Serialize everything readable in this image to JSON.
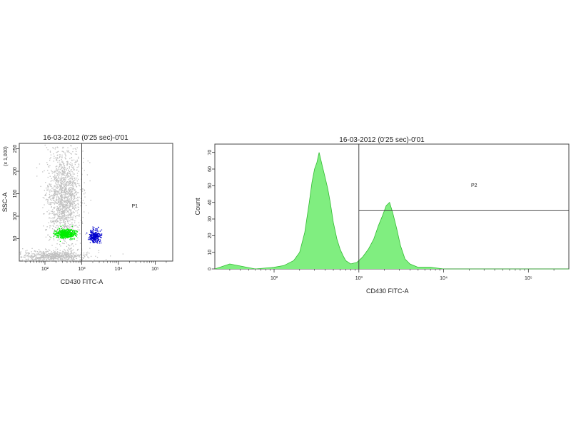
{
  "chart_data": [
    {
      "type": "scatter",
      "title": "16-03-2012 (0'25 sec)-0'01",
      "xlabel": "CD430 FITC-A",
      "ylabel": "SSC-A",
      "y_multiplier_label": "(x 1,000)",
      "x_scale": "log",
      "xlim": [
        20,
        300000
      ],
      "ylim": [
        0,
        262
      ],
      "x_tick_labels": [
        "10²",
        "10³",
        "10⁴",
        "10⁵"
      ],
      "x_ticks": [
        100,
        1000,
        10000,
        100000
      ],
      "y_tick_labels": [
        "50",
        "100",
        "150",
        "200",
        "250"
      ],
      "y_ticks": [
        50,
        100,
        150,
        200,
        250
      ],
      "gate_label": "P1",
      "gate_x": 1000,
      "grid": false,
      "series": [
        {
          "color": "#c0c0c0",
          "cluster": {
            "x_log_center": 2.5,
            "x_log_spread": 0.22,
            "y_center": 140,
            "y_spread": 55,
            "count": 1500
          }
        },
        {
          "color": "#c0c0c0",
          "cluster": {
            "x_log_center": 2.2,
            "x_log_spread": 0.5,
            "y_center": 12,
            "y_spread": 6,
            "count": 700
          }
        },
        {
          "color": "#00ee00",
          "cluster": {
            "x_log_center": 2.55,
            "x_log_spread": 0.13,
            "y_center": 62,
            "y_spread": 5,
            "count": 500
          }
        },
        {
          "color": "#0000cc",
          "cluster": {
            "x_log_center": 3.35,
            "x_log_spread": 0.08,
            "y_center": 57,
            "y_spread": 7,
            "count": 260
          }
        }
      ]
    },
    {
      "type": "area",
      "title": "16-03-2012 (0'25 sec)-0'01",
      "xlabel": "CD430 FITC-A",
      "ylabel": "Count",
      "x_scale": "log",
      "xlim": [
        20,
        300000
      ],
      "ylim": [
        0,
        75
      ],
      "x_tick_labels": [
        "10²",
        "10³",
        "10⁴",
        "10⁵"
      ],
      "x_ticks": [
        100,
        1000,
        10000,
        100000
      ],
      "y_tick_labels": [
        "0",
        "10",
        "20",
        "30",
        "40",
        "50",
        "60",
        "70"
      ],
      "y_ticks": [
        0,
        10,
        20,
        30,
        40,
        50,
        60,
        70
      ],
      "gate_label": "P2",
      "gate_x_range": [
        1000,
        300000
      ],
      "gate_y": 35,
      "fill_color": "#80ee80",
      "line_color": "#33bb33",
      "x": [
        20,
        30,
        60,
        100,
        130,
        170,
        200,
        230,
        260,
        280,
        300,
        320,
        340,
        370,
        400,
        430,
        460,
        500,
        550,
        600,
        650,
        700,
        800,
        950,
        1100,
        1300,
        1500,
        1700,
        1900,
        2100,
        2300,
        2500,
        2800,
        3100,
        3500,
        4000,
        5000,
        7000,
        10000,
        300000
      ],
      "values": [
        0,
        3,
        0,
        1,
        2,
        5,
        10,
        22,
        40,
        52,
        60,
        64,
        70,
        62,
        55,
        48,
        40,
        28,
        18,
        12,
        8,
        5,
        3,
        4,
        7,
        12,
        18,
        26,
        32,
        38,
        40,
        34,
        24,
        14,
        6,
        3,
        1,
        1,
        0,
        0
      ]
    }
  ]
}
